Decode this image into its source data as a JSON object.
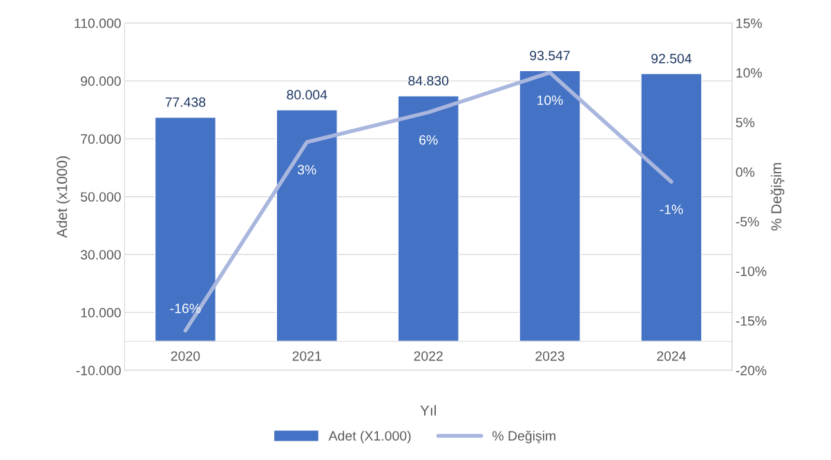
{
  "chart_data": {
    "type": "bar",
    "categories": [
      "2020",
      "2021",
      "2022",
      "2023",
      "2024"
    ],
    "xlabel": "Yıl",
    "ylabel": "Adet (x1000)",
    "y2label": "% Değişim",
    "series": [
      {
        "name": "Adet (X1.000)",
        "color": "#4472c4",
        "values": [
          77438,
          80004,
          84830,
          93547,
          92504
        ],
        "value_labels": [
          "77.438",
          "80.004",
          "84.830",
          "93.547",
          "92.504"
        ]
      },
      {
        "name": "% Değişim",
        "type": "line",
        "axis": "y2",
        "color": "#a9b6de",
        "values": [
          -16,
          3,
          6,
          10,
          -1
        ],
        "value_labels": [
          "-16%",
          "3%",
          "6%",
          "10%",
          "-1%"
        ]
      }
    ],
    "ylim": [
      -10000,
      110000
    ],
    "yticks": [
      {
        "value": -10000,
        "label": "-10.000"
      },
      {
        "value": 10000,
        "label": "10.000"
      },
      {
        "value": 30000,
        "label": "30.000"
      },
      {
        "value": 50000,
        "label": "50.000"
      },
      {
        "value": 70000,
        "label": "70.000"
      },
      {
        "value": 90000,
        "label": "90.000"
      },
      {
        "value": 110000,
        "label": "110.000"
      }
    ],
    "y2lim": [
      -20,
      15
    ],
    "y2ticks": [
      {
        "value": -20,
        "label": "-20%"
      },
      {
        "value": -15,
        "label": "-15%"
      },
      {
        "value": -10,
        "label": "-10%"
      },
      {
        "value": -5,
        "label": "-5%"
      },
      {
        "value": 0,
        "label": "0%"
      },
      {
        "value": 5,
        "label": "5%"
      },
      {
        "value": 10,
        "label": "10%"
      },
      {
        "value": 15,
        "label": "15%"
      }
    ],
    "grid": "y",
    "legend": "bottom",
    "line_style": "solid",
    "marker": "none"
  }
}
